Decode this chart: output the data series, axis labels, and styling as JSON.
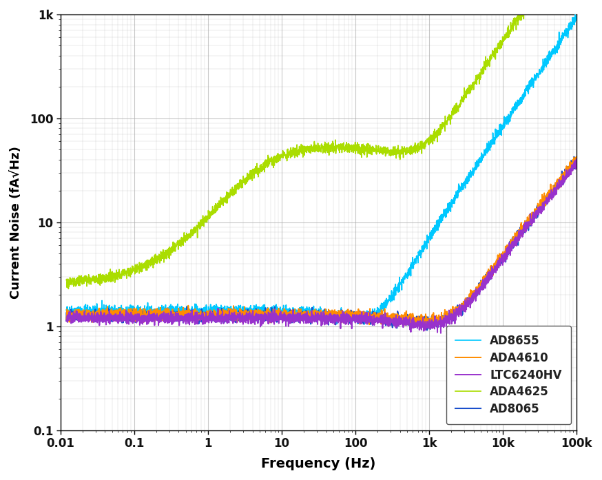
{
  "title": "",
  "xlabel": "Frequency (Hz)",
  "ylabel": "Current Noise (fA√Hz)",
  "xlim": [
    0.01,
    100000
  ],
  "ylim": [
    0.1,
    1000
  ],
  "background_color": "#ffffff",
  "grid_color": "#aaaaaa",
  "series": [
    {
      "label": "AD8655",
      "color": "#00c8ff"
    },
    {
      "label": "ADA4610",
      "color": "#ff8c00"
    },
    {
      "label": "LTC6240HV",
      "color": "#9932cc"
    },
    {
      "label": "ADA4625",
      "color": "#aadd00"
    },
    {
      "label": "AD8065",
      "color": "#1a4fcc"
    }
  ],
  "linewidth": 1.2,
  "noise_level": 0.06
}
